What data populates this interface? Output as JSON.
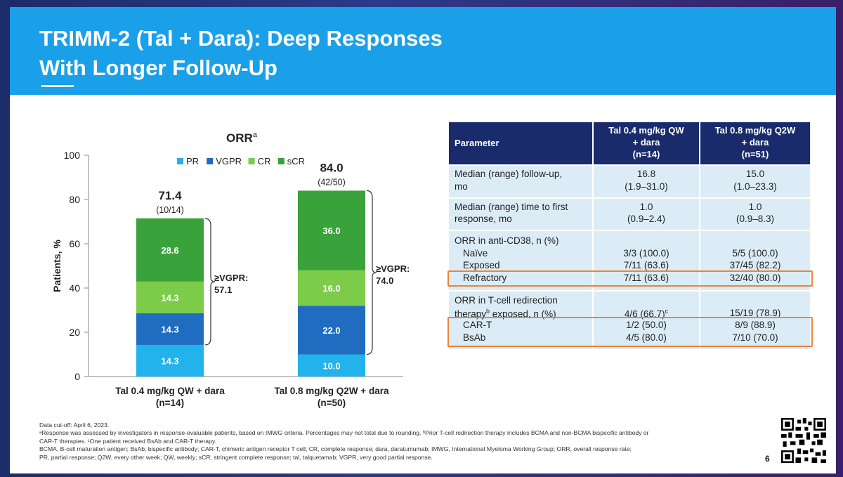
{
  "slide": {
    "title_line1": "TRIMM-2 (Tal + Dara): Deep Responses",
    "title_line2": "With Longer Follow-Up",
    "page_number": "6"
  },
  "chart_data": {
    "type": "bar",
    "stacked": true,
    "title": "ORR",
    "title_superscript": "a",
    "ylabel": "Patients, %",
    "ylim": [
      0,
      100
    ],
    "yticks": [
      0,
      20,
      40,
      60,
      80,
      100
    ],
    "legend": [
      "PR",
      "VGPR",
      "CR",
      "sCR"
    ],
    "legend_position": "top",
    "categories": [
      "Tal 0.4 mg/kg QW + dara",
      "Tal 0.8 mg/kg Q2W + dara"
    ],
    "category_n": [
      "(n=14)",
      "(n=50)"
    ],
    "series": [
      {
        "name": "PR",
        "color": "#22b2ec",
        "values": [
          14.3,
          10.0
        ],
        "labels": [
          "14.3",
          "10.0"
        ]
      },
      {
        "name": "VGPR",
        "color": "#1f6cc0",
        "values": [
          14.3,
          22.0
        ],
        "labels": [
          "14.3",
          "22.0"
        ]
      },
      {
        "name": "CR",
        "color": "#7ccc4a",
        "values": [
          14.3,
          16.0
        ],
        "labels": [
          "14.3",
          "16.0"
        ]
      },
      {
        "name": "sCR",
        "color": "#3aa23a",
        "values": [
          28.6,
          36.0
        ],
        "labels": [
          "28.6",
          "36.0"
        ]
      }
    ],
    "totals": [
      "71.4",
      "84.0"
    ],
    "totals_fraction": [
      "(10/14)",
      "(42/50)"
    ],
    "vgpr_brackets": [
      {
        "label_line1": "≥VGPR:",
        "label_line2": "57.1"
      },
      {
        "label_line1": "≥VGPR:",
        "label_line2": "74.0"
      }
    ]
  },
  "table": {
    "headers": [
      "Parameter",
      "Tal 0.4 mg/kg QW\n+ dara\n(n=14)",
      "Tal 0.8 mg/kg Q2W\n+ dara\n(n=51)"
    ],
    "header_lines": [
      [
        "Parameter"
      ],
      [
        "Tal 0.4 mg/kg QW",
        "+ dara",
        "(n=14)"
      ],
      [
        "Tal 0.8 mg/kg Q2W",
        "+ dara",
        "(n=51)"
      ]
    ],
    "groups": [
      {
        "rows": [
          {
            "param": "Median (range) follow-up,",
            "c2": "16.8",
            "c3": "15.0"
          },
          {
            "param": "mo",
            "c2": "(1.9–31.0)",
            "c3": "(1.0–23.3)"
          }
        ]
      },
      {
        "rows": [
          {
            "param": "Median (range) time to first",
            "c2": "1.0",
            "c3": "1.0"
          },
          {
            "param": "response, mo",
            "c2": "(0.9–2.4)",
            "c3": "(0.9–8.3)"
          }
        ]
      },
      {
        "rows": [
          {
            "param": "ORR in anti-CD38, n (%)",
            "c2": "",
            "c3": ""
          },
          {
            "param": "Naïve",
            "c2": "3/3 (100.0)",
            "c3": "5/5 (100.0)"
          },
          {
            "param": "Exposed",
            "c2": "7/11 (63.6)",
            "c3": "37/45 (82.2)"
          },
          {
            "param": "Refractory",
            "c2": "7/11 (63.6)",
            "c3": "32/40 (80.0)"
          }
        ]
      },
      {
        "rows": [
          {
            "param": "ORR in T-cell redirection",
            "c2": "",
            "c3": ""
          },
          {
            "param": "therapy",
            "param_sup": "b",
            "param_tail": " exposed, n (%)",
            "c2": "4/6 (66.7)",
            "c2_sup": "c",
            "c3": "15/19 (78.9)"
          },
          {
            "param": "CAR-T",
            "c2": "1/2 (50.0)",
            "c3": "8/9 (88.9)"
          },
          {
            "param": "BsAb",
            "c2": "4/5 (80.0)",
            "c3": "7/10 (70.0)"
          }
        ]
      }
    ],
    "highlight_color": "#e8863a"
  },
  "footnotes": {
    "line1": "Data cut-off: April 6, 2023.",
    "line2": "ᵃResponse was assessed by investigators in response-evaluable patients, based on IMWG criteria. Percentages may not total due to rounding. ᵇPrior T-cell redirection therapy includes BCMA and non-BCMA bispecific antibody or",
    "line3": "CAR-T therapies. ᶜOne patient received BsAb and CAR-T therapy.",
    "line4": "BCMA, B-cell maturation antigen; BsAb, bispecific antibody; CAR-T, chimeric antigen receptor T cell; CR, complete response; dara, daratumumab; IMWG, International Myeloma Working Group; ORR, overall response rate;",
    "line5": "PR, partial response; Q2W, every other week; QW, weekly; sCR, stringent complete response; tal, talquetamab; VGPR, very good partial response."
  }
}
